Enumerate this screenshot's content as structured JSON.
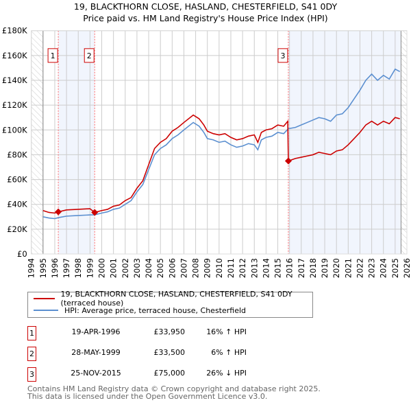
{
  "chart_data": {
    "type": "line",
    "title": "19, BLACKTHORN CLOSE, HASLAND, CHESTERFIELD, S41 0DY",
    "subtitle": "Price paid vs. HM Land Registry's House Price Index (HPI)",
    "xlim": [
      1994,
      2026
    ],
    "ylim": [
      0,
      180000
    ],
    "x_ticks": [
      "1994",
      "1995",
      "1996",
      "1997",
      "1998",
      "1999",
      "2000",
      "2001",
      "2002",
      "2003",
      "2004",
      "2005",
      "2006",
      "2007",
      "2008",
      "2009",
      "2010",
      "2011",
      "2012",
      "2013",
      "2014",
      "2015",
      "2016",
      "2017",
      "2018",
      "2019",
      "2020",
      "2021",
      "2022",
      "2023",
      "2024",
      "2025",
      "2026"
    ],
    "y_ticks": [
      {
        "v": 0,
        "label": "£0"
      },
      {
        "v": 20000,
        "label": "£20K"
      },
      {
        "v": 40000,
        "label": "£40K"
      },
      {
        "v": 60000,
        "label": "£60K"
      },
      {
        "v": 80000,
        "label": "£80K"
      },
      {
        "v": 100000,
        "label": "£100K"
      },
      {
        "v": 120000,
        "label": "£120K"
      },
      {
        "v": 140000,
        "label": "£140K"
      },
      {
        "v": 160000,
        "label": "£160K"
      },
      {
        "v": 180000,
        "label": "£180K"
      }
    ],
    "grid": true,
    "data_range": [
      1995,
      2025.5
    ],
    "shaded_periods": [
      [
        1996.3,
        1999.4
      ],
      [
        2015.9,
        2025.5
      ]
    ],
    "series": [
      {
        "name": "19, BLACKTHORN CLOSE, HASLAND, CHESTERFIELD, S41 0DY (terraced house)",
        "color": "#cc0000",
        "points": [
          [
            1995,
            35
          ],
          [
            1995.5,
            33.5
          ],
          [
            1996,
            33
          ],
          [
            1996.3,
            33.95
          ],
          [
            1997,
            35.5
          ],
          [
            1998,
            36
          ],
          [
            1999,
            36.5
          ],
          [
            1999.4,
            33.5
          ],
          [
            2000,
            35
          ],
          [
            2000.5,
            36
          ],
          [
            2001,
            38.5
          ],
          [
            2001.5,
            39.5
          ],
          [
            2002,
            43
          ],
          [
            2002.5,
            45.5
          ],
          [
            2003,
            53
          ],
          [
            2003.5,
            59
          ],
          [
            2004,
            72
          ],
          [
            2004.5,
            85
          ],
          [
            2005,
            90
          ],
          [
            2005.5,
            93
          ],
          [
            2006,
            99
          ],
          [
            2006.5,
            102
          ],
          [
            2007,
            106
          ],
          [
            2007.8,
            112
          ],
          [
            2008.3,
            109
          ],
          [
            2008.7,
            104
          ],
          [
            2009,
            99
          ],
          [
            2009.5,
            97
          ],
          [
            2010,
            96
          ],
          [
            2010.5,
            97
          ],
          [
            2011,
            94
          ],
          [
            2011.5,
            92
          ],
          [
            2012,
            93
          ],
          [
            2012.5,
            95
          ],
          [
            2013,
            96
          ],
          [
            2013.3,
            90
          ],
          [
            2013.6,
            98
          ],
          [
            2014,
            100
          ],
          [
            2014.5,
            101
          ],
          [
            2015,
            104
          ],
          [
            2015.5,
            103
          ],
          [
            2015.85,
            107
          ],
          [
            2015.9,
            75
          ],
          [
            2016.5,
            77
          ],
          [
            2017,
            78
          ],
          [
            2017.5,
            79
          ],
          [
            2018,
            80
          ],
          [
            2018.5,
            82
          ],
          [
            2019,
            81
          ],
          [
            2019.5,
            80
          ],
          [
            2020,
            83
          ],
          [
            2020.5,
            84
          ],
          [
            2021,
            88
          ],
          [
            2021.5,
            93
          ],
          [
            2022,
            98
          ],
          [
            2022.5,
            104
          ],
          [
            2023,
            107
          ],
          [
            2023.5,
            104
          ],
          [
            2024,
            107
          ],
          [
            2024.5,
            105
          ],
          [
            2025,
            110
          ],
          [
            2025.4,
            109
          ]
        ]
      },
      {
        "name": "HPI: Average price, terraced house, Chesterfield",
        "color": "#5b8fd0",
        "points": [
          [
            1995,
            30
          ],
          [
            1995.5,
            29
          ],
          [
            1996,
            28.5
          ],
          [
            1996.3,
            29.3
          ],
          [
            1997,
            30.5
          ],
          [
            1998,
            31
          ],
          [
            1999,
            31.5
          ],
          [
            1999.4,
            31.6
          ],
          [
            2000,
            33
          ],
          [
            2000.5,
            34
          ],
          [
            2001,
            36
          ],
          [
            2001.5,
            37
          ],
          [
            2002,
            40
          ],
          [
            2002.5,
            43
          ],
          [
            2003,
            50
          ],
          [
            2003.5,
            56
          ],
          [
            2004,
            68
          ],
          [
            2004.5,
            80
          ],
          [
            2005,
            85
          ],
          [
            2005.5,
            88
          ],
          [
            2006,
            93
          ],
          [
            2006.5,
            96
          ],
          [
            2007,
            100
          ],
          [
            2007.8,
            106
          ],
          [
            2008.3,
            103
          ],
          [
            2008.7,
            98
          ],
          [
            2009,
            93
          ],
          [
            2009.5,
            92
          ],
          [
            2010,
            90
          ],
          [
            2010.5,
            91
          ],
          [
            2011,
            88
          ],
          [
            2011.5,
            86
          ],
          [
            2012,
            87
          ],
          [
            2012.5,
            89
          ],
          [
            2013,
            88
          ],
          [
            2013.3,
            84
          ],
          [
            2013.6,
            92
          ],
          [
            2014,
            94
          ],
          [
            2014.5,
            95
          ],
          [
            2015,
            98
          ],
          [
            2015.5,
            97
          ],
          [
            2015.9,
            101
          ],
          [
            2016.5,
            102
          ],
          [
            2017,
            104
          ],
          [
            2017.5,
            106
          ],
          [
            2018,
            108
          ],
          [
            2018.5,
            110
          ],
          [
            2019,
            109
          ],
          [
            2019.5,
            107
          ],
          [
            2020,
            112
          ],
          [
            2020.5,
            113
          ],
          [
            2021,
            118
          ],
          [
            2021.5,
            125
          ],
          [
            2022,
            132
          ],
          [
            2022.5,
            140
          ],
          [
            2023,
            145
          ],
          [
            2023.5,
            140
          ],
          [
            2024,
            144
          ],
          [
            2024.5,
            141
          ],
          [
            2025,
            149
          ],
          [
            2025.4,
            147
          ]
        ]
      }
    ],
    "value_unit": "£ thousands",
    "sales": [
      {
        "id": "1",
        "x": 1996.3,
        "price": 33950,
        "date": "19-APR-1996",
        "price_label": "£33,950",
        "hpi": "16% ↑ HPI"
      },
      {
        "id": "2",
        "x": 1999.4,
        "price": 33500,
        "date": "28-MAY-1999",
        "price_label": "£33,500",
        "hpi": "6% ↑ HPI"
      },
      {
        "id": "3",
        "x": 2015.9,
        "price": 75000,
        "date": "25-NOV-2015",
        "price_label": "£75,000",
        "hpi": "26% ↓ HPI"
      }
    ]
  },
  "footer": {
    "line1": "Contains HM Land Registry data © Crown copyright and database right 2025.",
    "line2": "This data is licensed under the Open Government Licence v3.0."
  }
}
